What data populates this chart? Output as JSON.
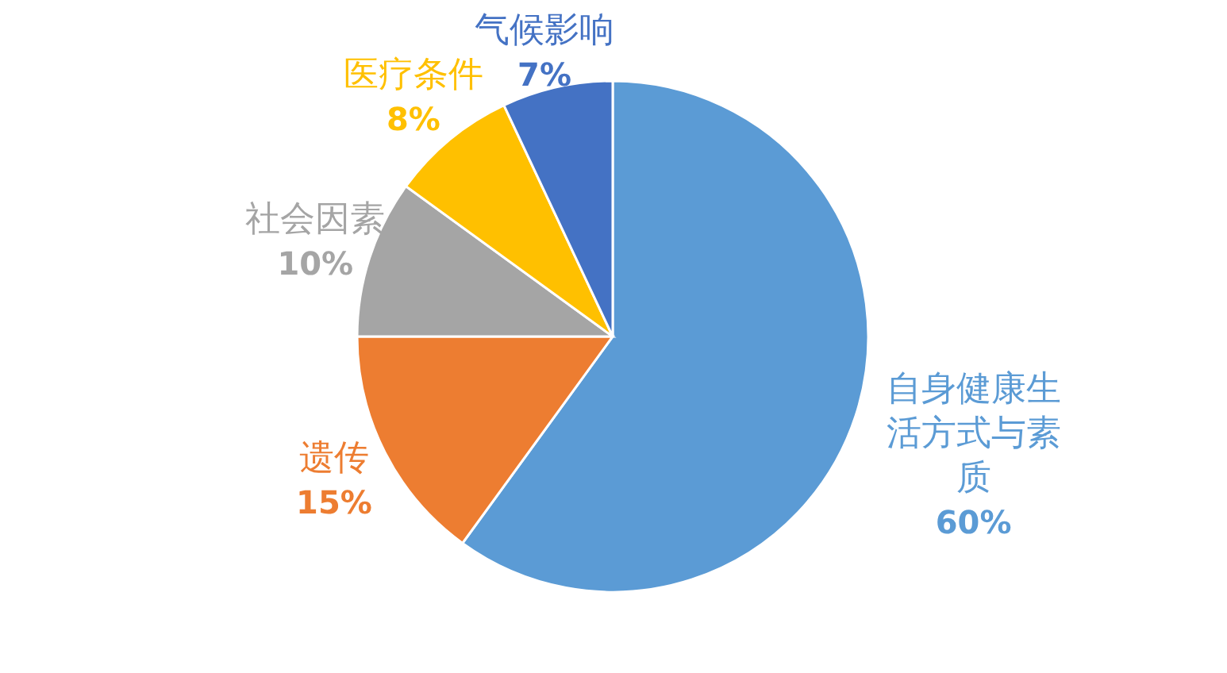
{
  "chart_data": {
    "type": "pie",
    "categories": [
      "自身健康生活方式与素质",
      "遗传",
      "社会因素",
      "医疗条件",
      "气候影响"
    ],
    "values": [
      60,
      15,
      10,
      8,
      7
    ],
    "colors": [
      "#5b9bd5",
      "#ed7d31",
      "#a5a5a5",
      "#ffc000",
      "#4472c4"
    ],
    "value_labels": [
      "60%",
      "15%",
      "10%",
      "8%",
      "7%"
    ]
  }
}
